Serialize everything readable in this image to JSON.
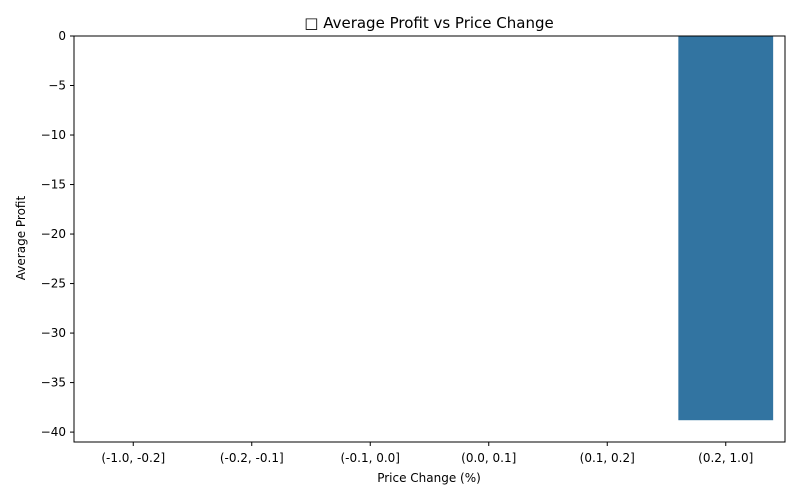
{
  "chart_data": {
    "type": "bar",
    "title": "□ Average Profit vs Price Change",
    "xlabel": "Price Change (%)",
    "ylabel": "Average Profit",
    "categories": [
      "(-1.0, -0.2]",
      "(-0.2, -0.1]",
      "(-0.1, 0.0]",
      "(0.0, 0.1]",
      "(0.1, 0.2]",
      "(0.2, 1.0]"
    ],
    "values": [
      null,
      null,
      null,
      null,
      null,
      -38.8
    ],
    "ylim": [
      -41,
      0
    ],
    "yticks": [
      0,
      -5,
      -10,
      -15,
      -20,
      -25,
      -30,
      -35,
      -40
    ],
    "ytick_labels": [
      "0",
      "−5",
      "−10",
      "−15",
      "−20",
      "−25",
      "−30",
      "−35",
      "−40"
    ],
    "bar_color": "#3274a1",
    "grid": false,
    "legend": "none"
  }
}
